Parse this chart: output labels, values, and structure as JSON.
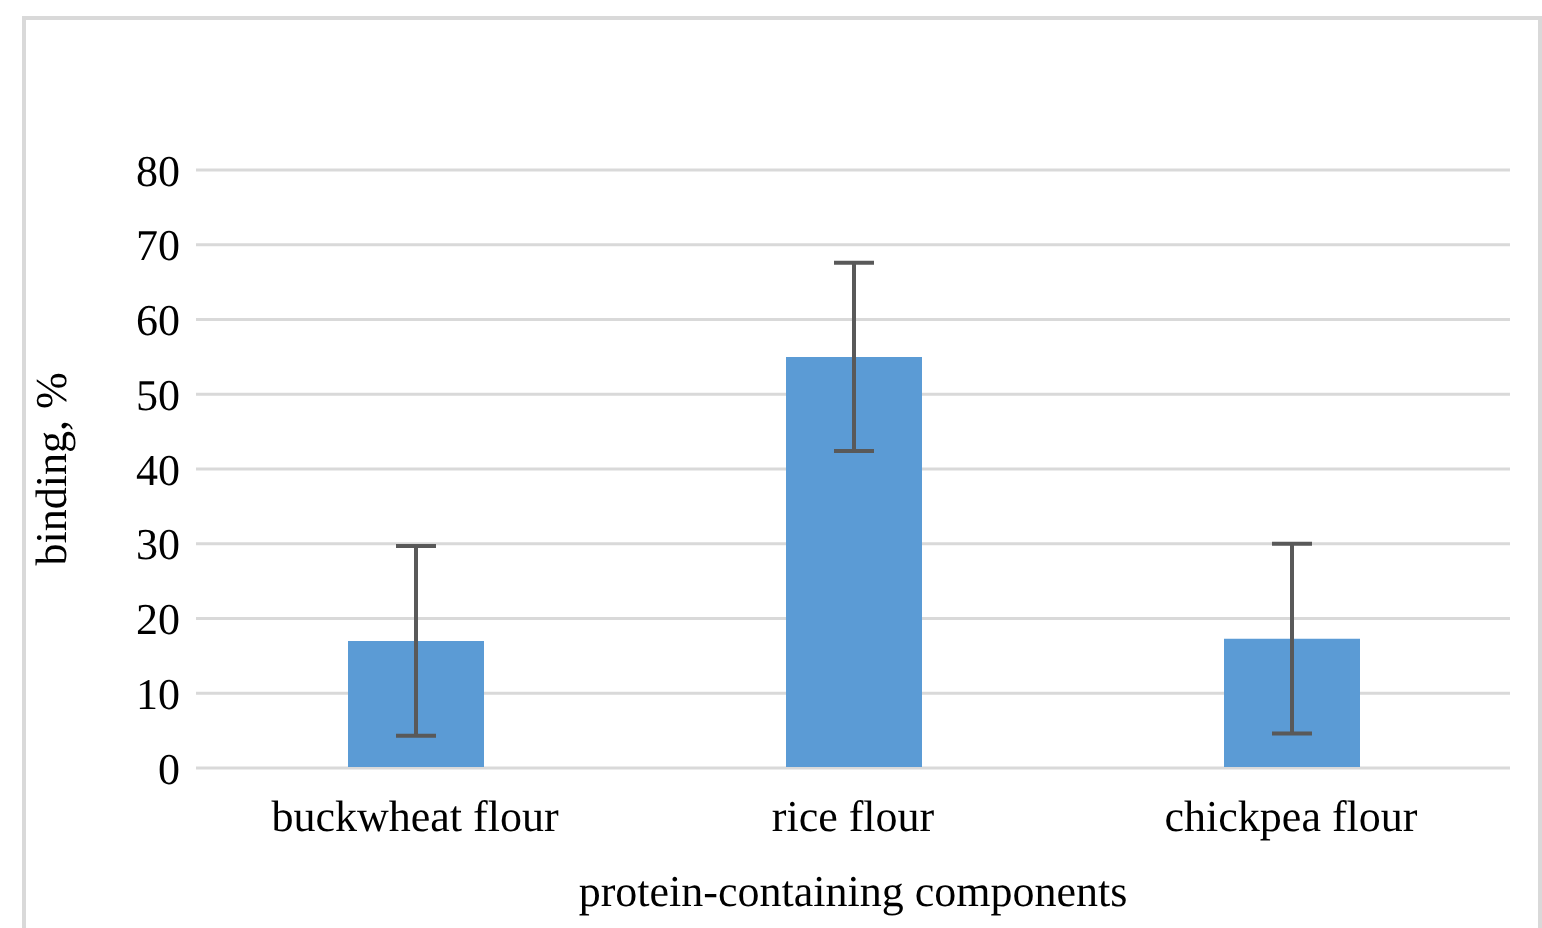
{
  "chart_data": {
    "type": "bar",
    "xlabel": "protein-containing  components",
    "ylabel": "binding, %",
    "categories": [
      "buckwheat flour",
      "rice flour",
      "chickpea flour"
    ],
    "values": [
      17,
      55,
      17.3
    ],
    "errors": [
      12.7,
      12.6,
      12.7
    ],
    "color": "#5b9bd5",
    "ylim": [
      0,
      80
    ],
    "yticks": [
      0,
      10,
      20,
      30,
      40,
      50,
      60,
      70,
      80
    ],
    "grid": "y"
  }
}
